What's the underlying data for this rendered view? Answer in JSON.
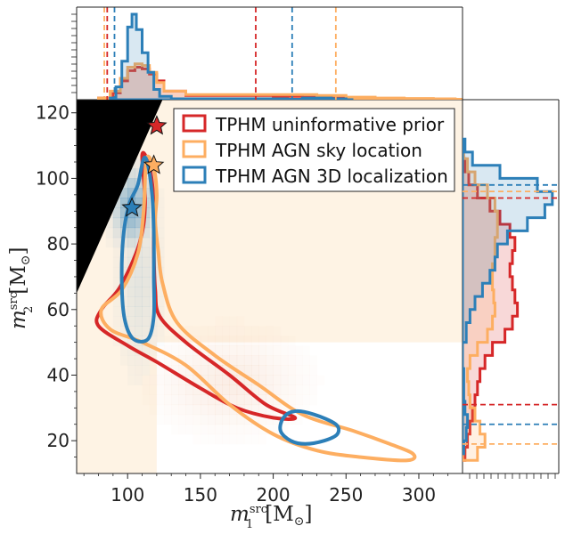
{
  "chart_data": {
    "type": "contour",
    "xlabel_main": "m",
    "xlabel_sup": "src",
    "xlabel_sub": "1",
    "xlabel_unit": "[M",
    "xlabel_unit_sub": "⊙",
    "xlabel_unit_end": "]",
    "ylabel_main": "m",
    "ylabel_sup": "src",
    "ylabel_sub": "2",
    "ylabel_unit": "[M",
    "ylabel_unit_sub": "⊙",
    "ylabel_unit_end": "]",
    "xlim": [
      65,
      330
    ],
    "ylim": [
      10,
      124
    ],
    "xticks": [
      100,
      150,
      200,
      250,
      300
    ],
    "yticks": [
      20,
      40,
      60,
      80,
      100,
      120
    ],
    "legend_position": "upper-right",
    "colors": {
      "red": "#d62728",
      "orange": "#fdae61",
      "blue": "#2c7fb8",
      "excluded": "#000000",
      "prior_fill": "#fef3e4"
    },
    "series": [
      {
        "name": "TPHM uninformative prior",
        "color": "#d62728",
        "star": [
          120,
          116
        ],
        "contour": [
          [
            110,
            107
          ],
          [
            114,
            105
          ],
          [
            117,
            98
          ],
          [
            118,
            88
          ],
          [
            118,
            77
          ],
          [
            119,
            66
          ],
          [
            122,
            58
          ],
          [
            140,
            50
          ],
          [
            170,
            40
          ],
          [
            195,
            31
          ],
          [
            215,
            27
          ],
          [
            200,
            27
          ],
          [
            175,
            30
          ],
          [
            150,
            36
          ],
          [
            120,
            44
          ],
          [
            100,
            49
          ],
          [
            80,
            55
          ],
          [
            82,
            60
          ],
          [
            95,
            67
          ],
          [
            108,
            80
          ],
          [
            112,
            92
          ],
          [
            110,
            107
          ]
        ],
        "v_lines": [
          86,
          188
        ],
        "h_lines": [
          31,
          94
        ]
      },
      {
        "name": "TPHM AGN sky location",
        "color": "#fdae61",
        "star": [
          118,
          104
        ],
        "contour": [
          [
            113,
            106
          ],
          [
            118,
            103
          ],
          [
            120,
            95
          ],
          [
            119,
            87
          ],
          [
            121,
            78
          ],
          [
            124,
            68
          ],
          [
            134,
            56
          ],
          [
            160,
            46
          ],
          [
            190,
            37
          ],
          [
            220,
            28
          ],
          [
            255,
            23
          ],
          [
            280,
            19
          ],
          [
            296,
            16
          ],
          [
            292,
            14
          ],
          [
            260,
            15
          ],
          [
            230,
            17
          ],
          [
            200,
            22
          ],
          [
            170,
            31
          ],
          [
            140,
            43
          ],
          [
            110,
            50
          ],
          [
            88,
            54
          ],
          [
            82,
            60
          ],
          [
            96,
            66
          ],
          [
            107,
            77
          ],
          [
            111,
            90
          ],
          [
            113,
            106
          ]
        ],
        "v_lines": [
          84,
          243
        ],
        "h_lines": [
          19,
          96
        ]
      },
      {
        "name": "TPHM AGN 3D localization",
        "color": "#2c7fb8",
        "star": [
          103,
          91
        ],
        "contour": [
          [
            107,
            98
          ],
          [
            111,
            106
          ],
          [
            114,
            104
          ],
          [
            117,
            94
          ],
          [
            118,
            83
          ],
          [
            118,
            70
          ],
          [
            118,
            58
          ],
          [
            114,
            51
          ],
          [
            104,
            51
          ],
          [
            98,
            57
          ],
          [
            96,
            68
          ],
          [
            97,
            82
          ],
          [
            101,
            92
          ],
          [
            107,
            98
          ]
        ],
        "contour2": [
          [
            215,
            29
          ],
          [
            228,
            28
          ],
          [
            243,
            25
          ],
          [
            244,
            22
          ],
          [
            235,
            20
          ],
          [
            222,
            19
          ],
          [
            212,
            20
          ],
          [
            205,
            23
          ],
          [
            207,
            27
          ],
          [
            215,
            29
          ]
        ],
        "v_lines": [
          91,
          213
        ],
        "h_lines": [
          25,
          98
        ]
      }
    ]
  }
}
